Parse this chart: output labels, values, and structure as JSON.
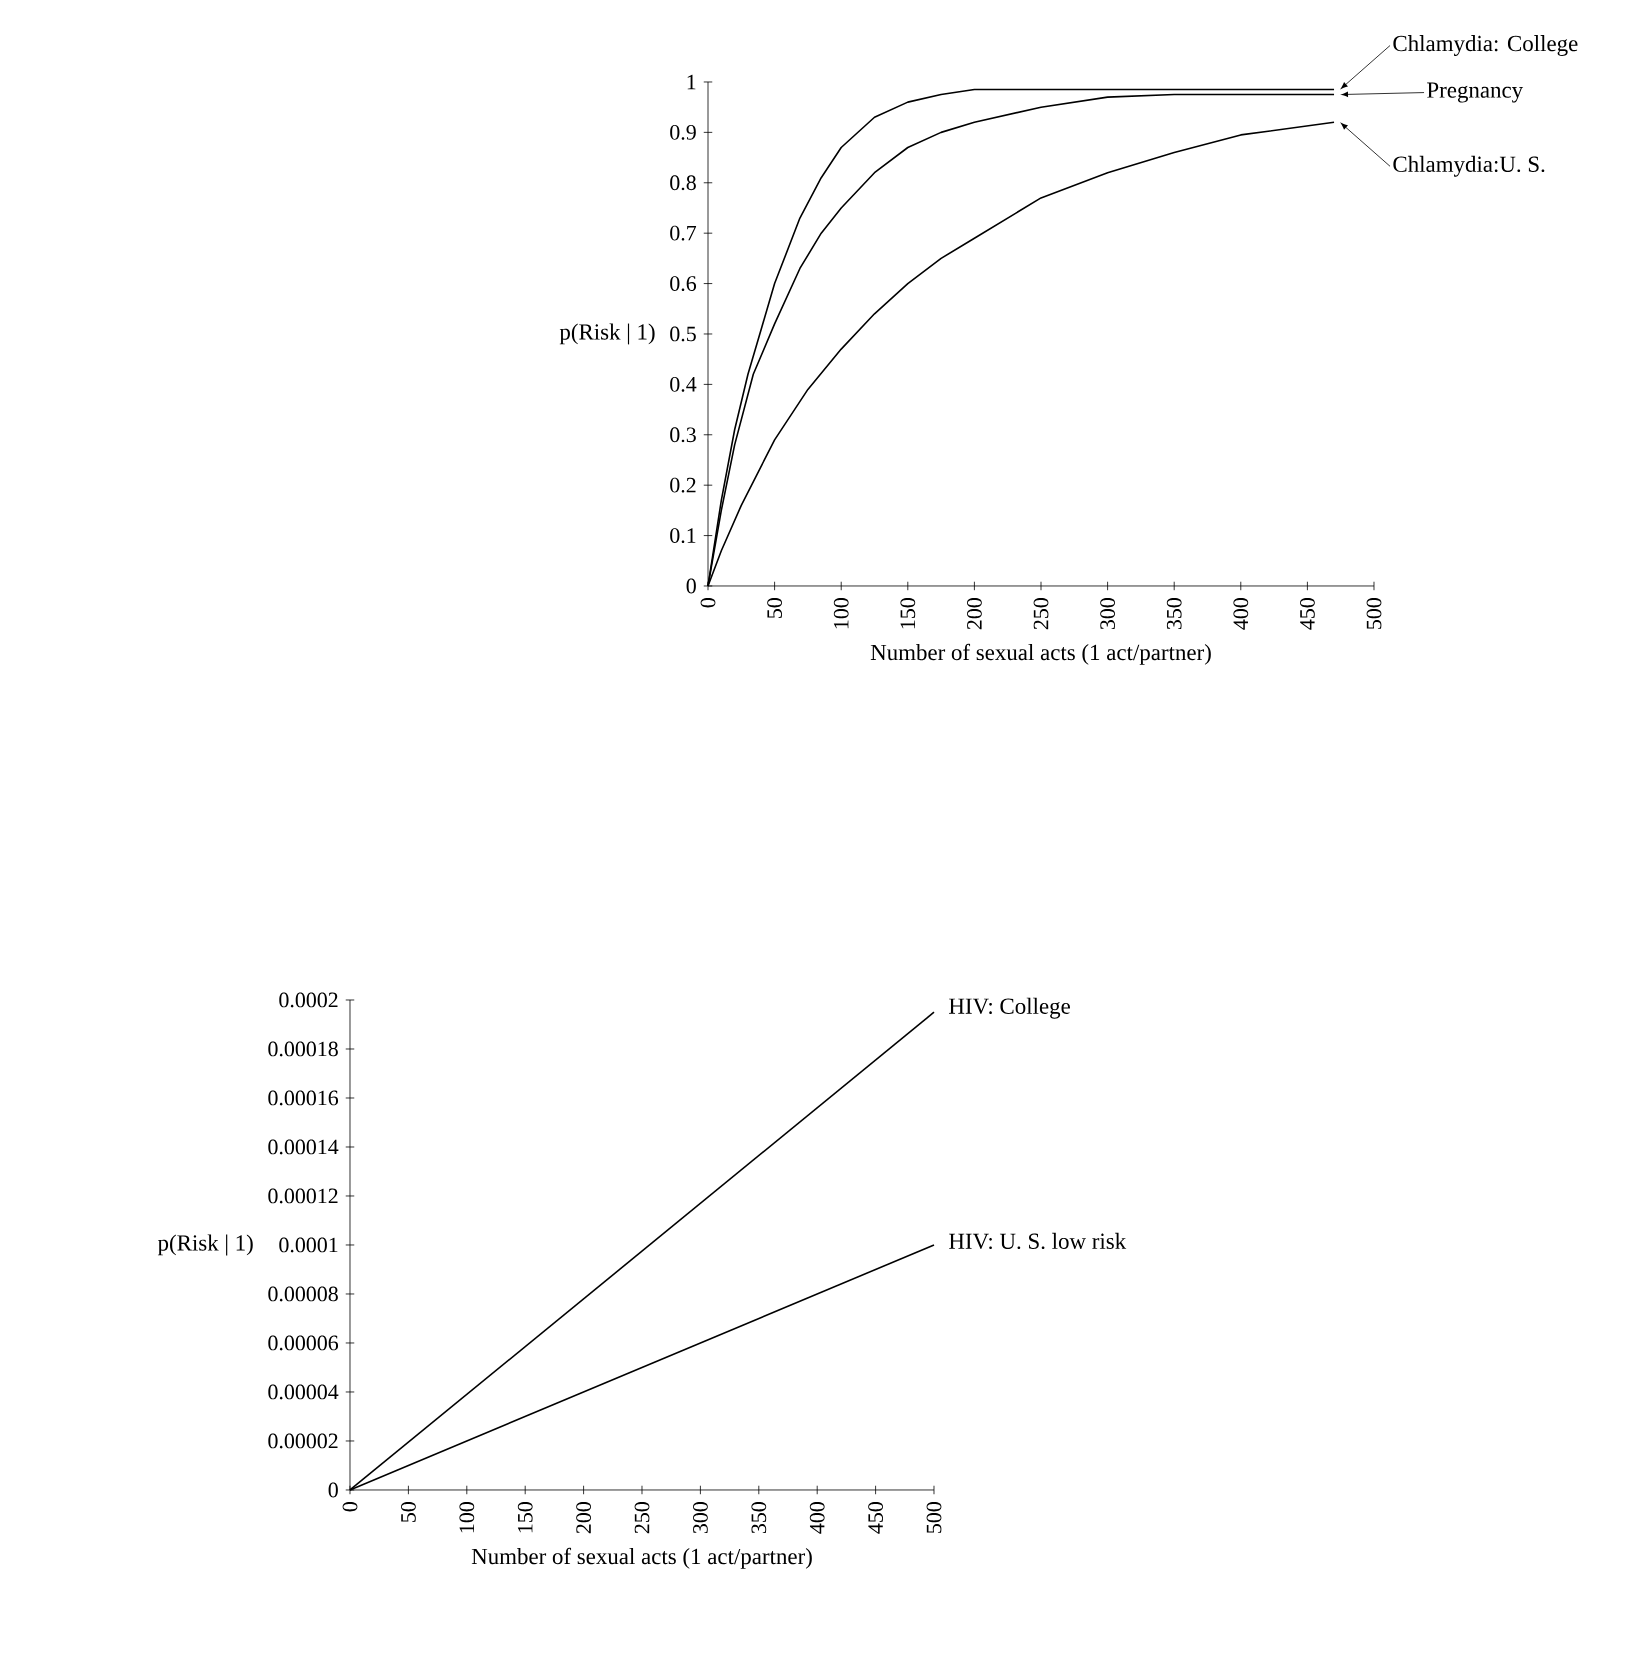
{
  "chart_data": [
    {
      "type": "line",
      "xlabel": "Number of sexual acts (1 act/partner)",
      "ylabel": "p(Risk | 1)",
      "xlim": [
        0,
        500
      ],
      "ylim": [
        0,
        1
      ],
      "xticks": [
        0,
        50,
        100,
        150,
        200,
        250,
        300,
        350,
        400,
        450,
        500
      ],
      "yticks": [
        0,
        0.1,
        0.2,
        0.3,
        0.4,
        0.5,
        0.6,
        0.7,
        0.8,
        0.9,
        1
      ],
      "legend": "right",
      "grid": false,
      "marker": "none",
      "series": [
        {
          "name": "Chlamydia: College",
          "color": "#000000",
          "x": [
            0,
            10,
            20,
            30,
            40,
            50,
            69,
            85,
            100,
            125,
            150,
            175,
            200,
            250,
            300,
            350,
            400,
            470
          ],
          "values": [
            0,
            0.17,
            0.31,
            0.42,
            0.51,
            0.6,
            0.73,
            0.81,
            0.87,
            0.93,
            0.96,
            0.975,
            0.985,
            0.985,
            0.985,
            0.985,
            0.985,
            0.985
          ]
        },
        {
          "name": "Pregnancy",
          "color": "#000000",
          "x": [
            0,
            10,
            20,
            34,
            50,
            69,
            85,
            100,
            125,
            150,
            175,
            200,
            250,
            300,
            350,
            400,
            470
          ],
          "values": [
            0,
            0.15,
            0.28,
            0.42,
            0.52,
            0.63,
            0.7,
            0.75,
            0.82,
            0.87,
            0.9,
            0.92,
            0.95,
            0.97,
            0.975,
            0.975,
            0.975
          ]
        },
        {
          "name": "Chlamydia:U. S.",
          "color": "#000000",
          "x": [
            0,
            10,
            25,
            50,
            75,
            100,
            125,
            150,
            175,
            200,
            250,
            300,
            350,
            400,
            470
          ],
          "values": [
            0,
            0.07,
            0.16,
            0.29,
            0.39,
            0.47,
            0.54,
            0.6,
            0.65,
            0.69,
            0.77,
            0.82,
            0.86,
            0.895,
            0.92
          ]
        }
      ]
    },
    {
      "type": "line",
      "xlabel": "Number of sexual acts (1 act/partner)",
      "ylabel": "p(Risk | 1)",
      "xlim": [
        0,
        500
      ],
      "ylim": [
        0,
        0.0002
      ],
      "xticks": [
        0,
        50,
        100,
        150,
        200,
        250,
        300,
        350,
        400,
        450,
        500
      ],
      "yticks": [
        0,
        {
          "value": 2e-05,
          "label": "0.00002"
        },
        {
          "value": 4e-05,
          "label": "0.00004"
        },
        {
          "value": 6e-05,
          "label": "0.00006"
        },
        {
          "value": 8e-05,
          "label": "0.00008"
        },
        {
          "value": 0.0001,
          "label": "0.0001"
        },
        {
          "value": 0.00012,
          "label": "0.00012"
        },
        {
          "value": 0.00014,
          "label": "0.00014"
        },
        {
          "value": 0.00016,
          "label": "0.00016"
        },
        {
          "value": 0.00018,
          "label": "0.00018"
        },
        {
          "value": 0.0002,
          "label": "0.0002"
        }
      ],
      "legend": false,
      "grid": false,
      "series": [
        {
          "name": "HIV: College",
          "color": "#000000",
          "x": [
            0,
            500
          ],
          "values": [
            0,
            0.000195
          ]
        },
        {
          "name": "HIV: U. S. low risk",
          "color": "#000000",
          "x": [
            0,
            500
          ],
          "values": [
            0,
            0.0001
          ]
        }
      ]
    }
  ]
}
